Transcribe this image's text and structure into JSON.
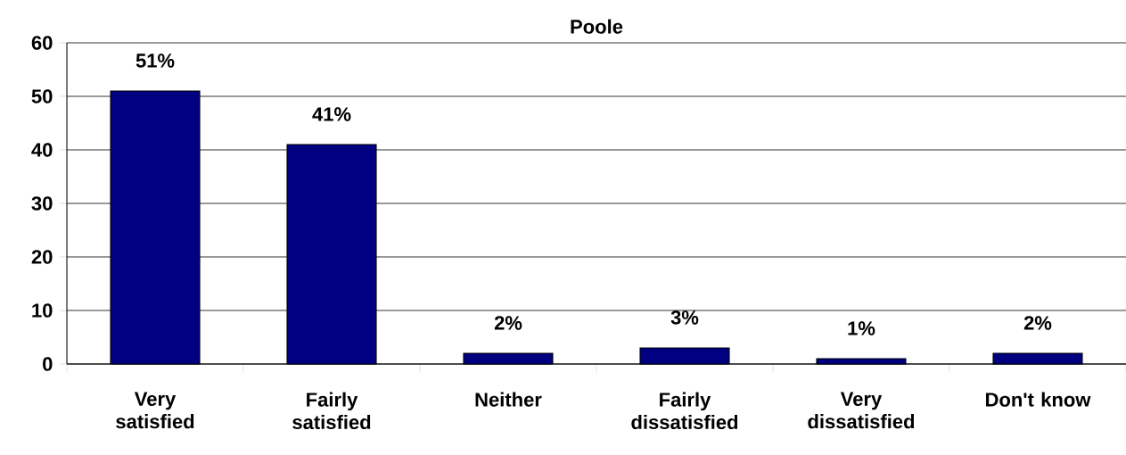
{
  "chart_data": {
    "type": "bar",
    "title": "Poole",
    "categories": [
      "Very satisfied",
      "Fairly satisfied",
      "Neither",
      "Fairly dissatisfied",
      "Very dissatisfied",
      "Don't know"
    ],
    "values": [
      51,
      41,
      2,
      3,
      1,
      2
    ],
    "value_labels": [
      "51%",
      "41%",
      "2%",
      "3%",
      "1%",
      "2%"
    ],
    "color": "#000080",
    "ylim": [
      0,
      60
    ],
    "yticks": [
      0,
      10,
      20,
      30,
      40,
      50,
      60
    ],
    "grid": "y"
  }
}
